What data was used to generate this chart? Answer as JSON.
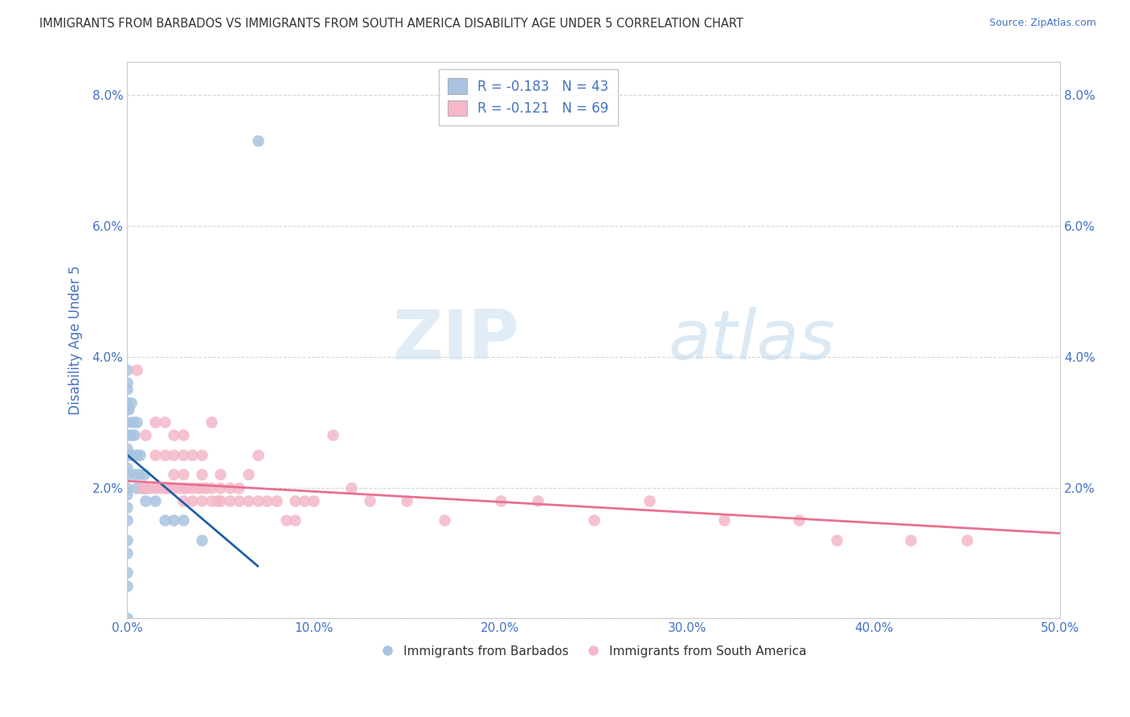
{
  "title": "IMMIGRANTS FROM BARBADOS VS IMMIGRANTS FROM SOUTH AMERICA DISABILITY AGE UNDER 5 CORRELATION CHART",
  "source": "Source: ZipAtlas.com",
  "ylabel": "Disability Age Under 5",
  "xlim": [
    0.0,
    0.5
  ],
  "ylim": [
    0.0,
    0.085
  ],
  "xtick_labels": [
    "0.0%",
    "10.0%",
    "20.0%",
    "30.0%",
    "40.0%",
    "50.0%"
  ],
  "xtick_values": [
    0.0,
    0.1,
    0.2,
    0.3,
    0.4,
    0.5
  ],
  "ytick_labels": [
    "",
    "2.0%",
    "4.0%",
    "6.0%",
    "8.0%"
  ],
  "ytick_values": [
    0.0,
    0.02,
    0.04,
    0.06,
    0.08
  ],
  "legend1_label": "R = -0.183   N = 43",
  "legend2_label": "R = -0.121   N = 69",
  "legend_xlabel1": "Immigrants from Barbados",
  "legend_xlabel2": "Immigrants from South America",
  "color_barbados": "#a8c4e0",
  "color_south_america": "#f4b8c8",
  "line_color_barbados": "#1f5fa6",
  "line_color_south_america": "#e87090",
  "watermark_zip": "ZIP",
  "watermark_atlas": "atlas",
  "title_color": "#333333",
  "source_color": "#4472c4",
  "axis_label_color": "#4472c4",
  "tick_color": "#4472c4",
  "barbados_x": [
    0.0,
    0.0,
    0.0,
    0.0,
    0.0,
    0.0,
    0.0,
    0.0,
    0.0,
    0.0,
    0.0,
    0.0,
    0.0,
    0.0,
    0.0,
    0.0,
    0.0,
    0.0,
    0.0,
    0.0,
    0.001,
    0.001,
    0.002,
    0.002,
    0.003,
    0.003,
    0.004,
    0.004,
    0.005,
    0.005,
    0.005,
    0.006,
    0.007,
    0.008,
    0.009,
    0.01,
    0.01,
    0.015,
    0.02,
    0.025,
    0.03,
    0.04,
    0.07
  ],
  "barbados_y": [
    0.0,
    0.005,
    0.007,
    0.01,
    0.012,
    0.015,
    0.017,
    0.019,
    0.02,
    0.022,
    0.023,
    0.025,
    0.026,
    0.028,
    0.03,
    0.032,
    0.033,
    0.035,
    0.036,
    0.038,
    0.025,
    0.032,
    0.028,
    0.033,
    0.025,
    0.03,
    0.022,
    0.028,
    0.02,
    0.025,
    0.03,
    0.022,
    0.025,
    0.02,
    0.022,
    0.018,
    0.02,
    0.018,
    0.015,
    0.015,
    0.015,
    0.012,
    0.073
  ],
  "south_america_x": [
    0.005,
    0.008,
    0.01,
    0.01,
    0.012,
    0.015,
    0.015,
    0.015,
    0.018,
    0.02,
    0.02,
    0.02,
    0.022,
    0.025,
    0.025,
    0.025,
    0.025,
    0.028,
    0.03,
    0.03,
    0.03,
    0.03,
    0.03,
    0.032,
    0.035,
    0.035,
    0.035,
    0.038,
    0.04,
    0.04,
    0.04,
    0.04,
    0.042,
    0.045,
    0.045,
    0.045,
    0.048,
    0.05,
    0.05,
    0.05,
    0.055,
    0.055,
    0.06,
    0.06,
    0.065,
    0.065,
    0.07,
    0.07,
    0.075,
    0.08,
    0.085,
    0.09,
    0.09,
    0.095,
    0.1,
    0.11,
    0.12,
    0.13,
    0.15,
    0.17,
    0.2,
    0.22,
    0.25,
    0.28,
    0.32,
    0.36,
    0.38,
    0.42,
    0.45
  ],
  "south_america_y": [
    0.038,
    0.02,
    0.02,
    0.028,
    0.02,
    0.02,
    0.025,
    0.03,
    0.02,
    0.02,
    0.025,
    0.03,
    0.02,
    0.02,
    0.022,
    0.025,
    0.028,
    0.02,
    0.018,
    0.02,
    0.022,
    0.025,
    0.028,
    0.02,
    0.018,
    0.02,
    0.025,
    0.02,
    0.018,
    0.02,
    0.022,
    0.025,
    0.02,
    0.018,
    0.02,
    0.03,
    0.018,
    0.018,
    0.02,
    0.022,
    0.018,
    0.02,
    0.018,
    0.02,
    0.018,
    0.022,
    0.018,
    0.025,
    0.018,
    0.018,
    0.015,
    0.018,
    0.015,
    0.018,
    0.018,
    0.028,
    0.02,
    0.018,
    0.018,
    0.015,
    0.018,
    0.018,
    0.015,
    0.018,
    0.015,
    0.015,
    0.012,
    0.012,
    0.012
  ],
  "barbados_line_x": [
    0.0,
    0.07
  ],
  "barbados_line_y": [
    0.025,
    0.008
  ],
  "sa_line_x": [
    0.0,
    0.5
  ],
  "sa_line_y": [
    0.021,
    0.013
  ]
}
